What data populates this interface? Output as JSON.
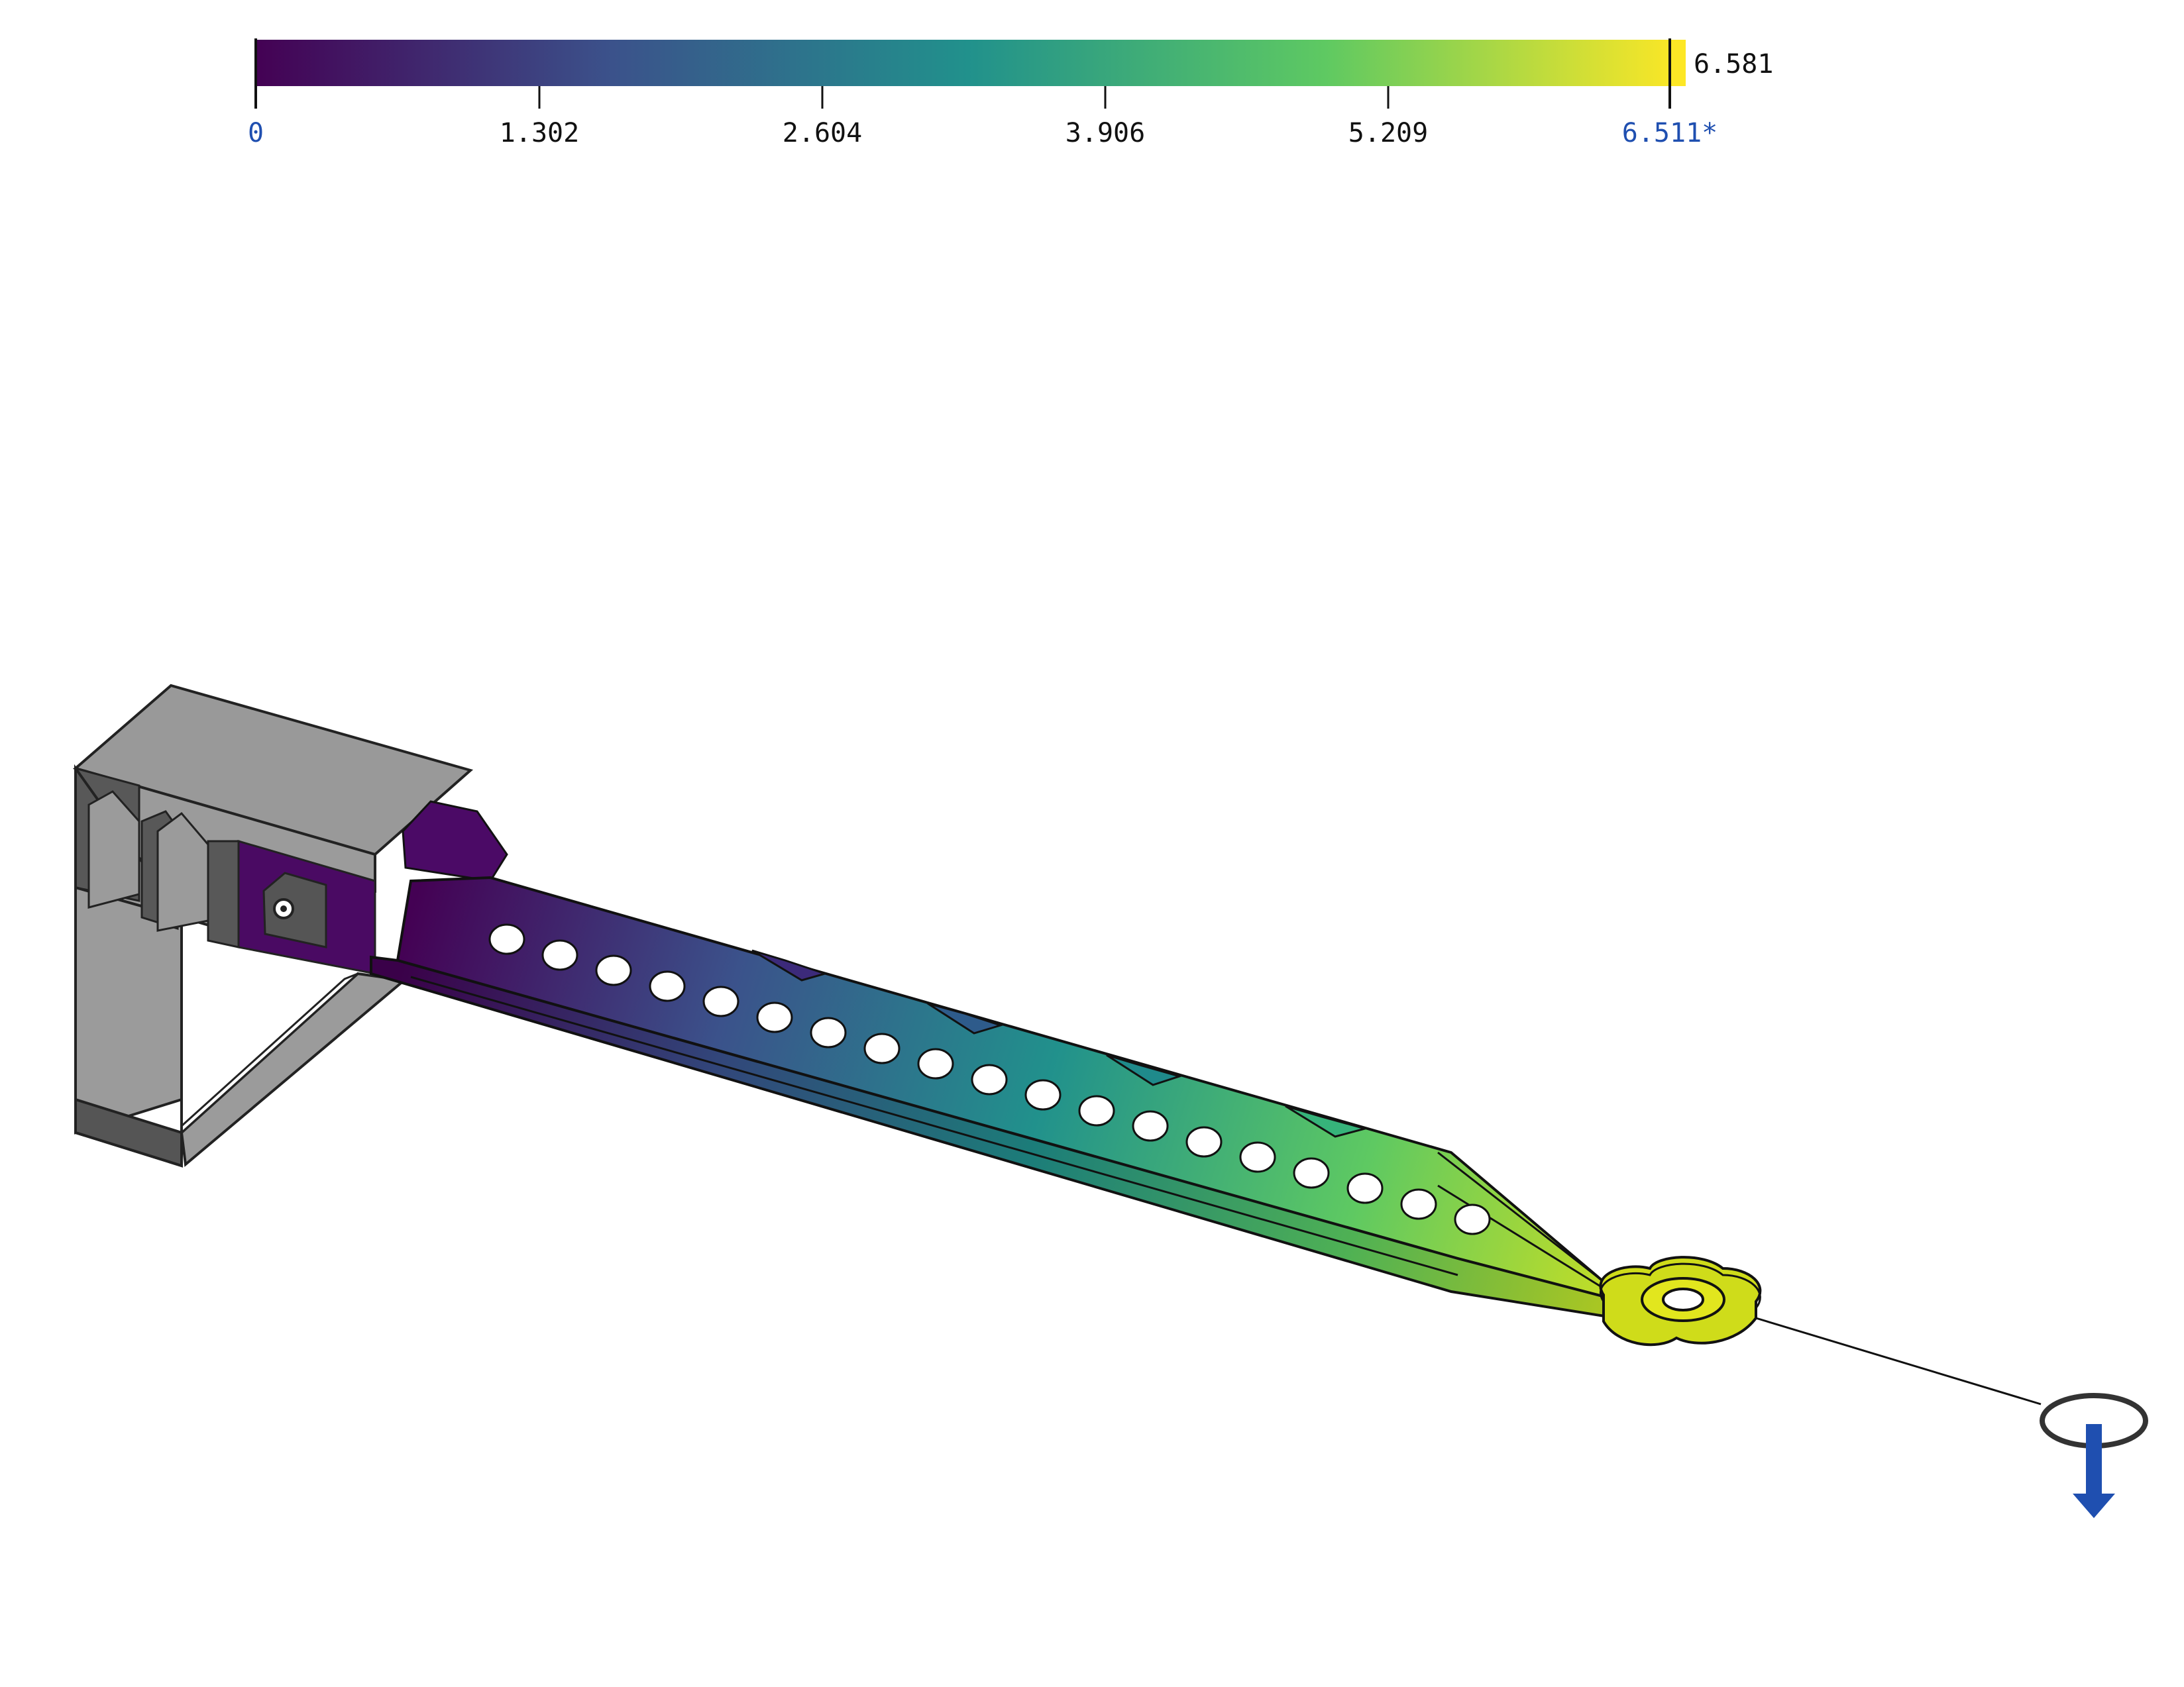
{
  "colorbar": {
    "min_label": "0",
    "ticks": [
      "1.302",
      "2.604",
      "3.906",
      "5.209"
    ],
    "threshold_label": "6.511*",
    "max_label": "6.581",
    "colormap": [
      "#440154",
      "#3b528b",
      "#21918c",
      "#5ec962",
      "#fde725"
    ],
    "edge_label_color": "#1f4fb0",
    "tick_label_color": "#111111"
  },
  "model": {
    "fixture_color": "#9a9a9a",
    "fixture_dark": "#555555",
    "load_arrow_color": "#1f4fb0"
  }
}
